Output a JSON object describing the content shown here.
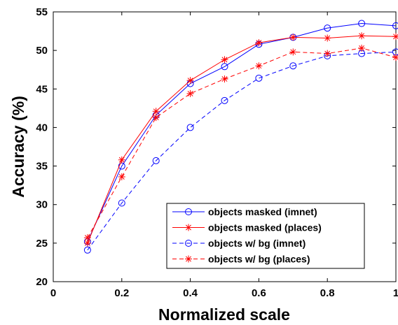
{
  "chart_data": {
    "type": "line",
    "title": "",
    "xlabel": "Normalized scale",
    "ylabel": "Accuracy (%)",
    "xlim": [
      0,
      1
    ],
    "ylim": [
      20,
      55
    ],
    "xticks": [
      0,
      0.2,
      0.4,
      0.6,
      0.8,
      1
    ],
    "xtick_labels": [
      "0",
      "0.2",
      "0.4",
      "0.6",
      "0.8",
      "1"
    ],
    "yticks": [
      20,
      25,
      30,
      35,
      40,
      45,
      50,
      55
    ],
    "ytick_labels": [
      "20",
      "25",
      "30",
      "35",
      "40",
      "45",
      "50",
      "55"
    ],
    "grid": false,
    "legend_position": "bottom-right",
    "x": [
      0.1,
      0.2,
      0.3,
      0.4,
      0.5,
      0.6,
      0.7,
      0.8,
      0.9,
      1.0
    ],
    "series": [
      {
        "name": "objects masked (imnet)",
        "color": "#0000ff",
        "line": "solid",
        "marker": "circle",
        "values": [
          25.2,
          35.0,
          41.6,
          45.7,
          47.9,
          50.8,
          51.7,
          52.9,
          53.5,
          53.2
        ]
      },
      {
        "name": "objects masked (places)",
        "color": "#ff0000",
        "line": "solid",
        "marker": "star",
        "values": [
          25.0,
          35.8,
          42.1,
          46.1,
          48.8,
          51.0,
          51.7,
          51.6,
          51.9,
          51.8
        ]
      },
      {
        "name": "objects w/ bg (imnet)",
        "color": "#0000ff",
        "line": "dashed",
        "marker": "circle",
        "values": [
          24.1,
          30.2,
          35.7,
          40.0,
          43.5,
          46.4,
          48.0,
          49.3,
          49.6,
          49.8
        ]
      },
      {
        "name": "objects w/ bg (places)",
        "color": "#ff0000",
        "line": "dashed",
        "marker": "star",
        "values": [
          25.7,
          33.6,
          41.3,
          44.4,
          46.3,
          48.0,
          49.8,
          49.6,
          50.3,
          49.1
        ]
      }
    ]
  }
}
